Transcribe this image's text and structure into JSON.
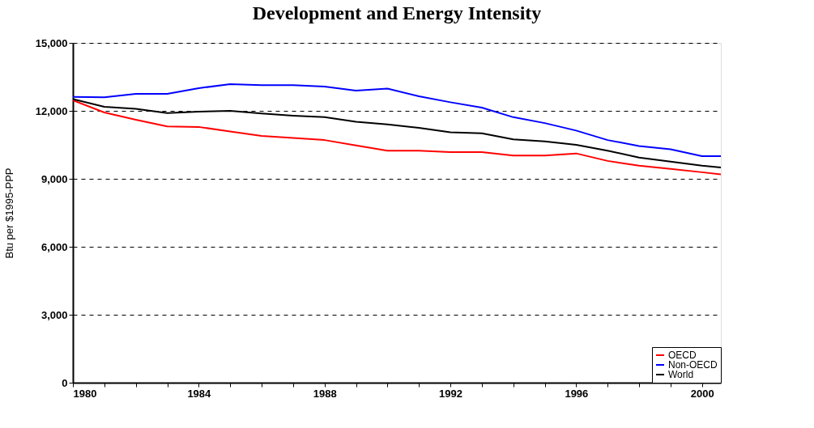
{
  "chart_data": {
    "type": "line",
    "title": "Development and Energy Intensity",
    "ylabel": "Btu per $1995-PPP",
    "x": [
      1980,
      1981,
      1982,
      1983,
      1984,
      1985,
      1986,
      1987,
      1988,
      1989,
      1990,
      1991,
      1992,
      1993,
      1994,
      1995,
      1996,
      1997,
      1998,
      1999,
      2000,
      2000.6
    ],
    "series": [
      {
        "name": "OECD",
        "color": "#ff0000",
        "values": [
          12470,
          11930,
          11610,
          11310,
          11290,
          11090,
          10890,
          10800,
          10710,
          10470,
          10240,
          10240,
          10180,
          10180,
          10030,
          10030,
          10120,
          9790,
          9580,
          9440,
          9290,
          9200
        ]
      },
      {
        "name": "Non-OECD",
        "color": "#0000ff",
        "values": [
          12620,
          12600,
          12750,
          12750,
          13000,
          13180,
          13130,
          13130,
          13070,
          12890,
          12980,
          12640,
          12380,
          12140,
          11720,
          11460,
          11130,
          10710,
          10450,
          10300,
          10000,
          10000
        ]
      },
      {
        "name": "World",
        "color": "#000000",
        "values": [
          12520,
          12180,
          12090,
          11900,
          11960,
          12000,
          11880,
          11790,
          11720,
          11520,
          11400,
          11250,
          11050,
          11010,
          10740,
          10650,
          10500,
          10240,
          9940,
          9760,
          9580,
          9500
        ]
      }
    ],
    "xlim": [
      1980,
      2000.6
    ],
    "xticks": [
      1980,
      {
        "value": 1981,
        "label": null
      },
      {
        "value": 1982,
        "label": null
      },
      {
        "value": 1983,
        "label": null
      },
      1984,
      {
        "value": 1985,
        "label": null
      },
      {
        "value": 1986,
        "label": null
      },
      {
        "value": 1987,
        "label": null
      },
      1988,
      {
        "value": 1989,
        "label": null
      },
      {
        "value": 1990,
        "label": null
      },
      {
        "value": 1991,
        "label": null
      },
      1992,
      {
        "value": 1993,
        "label": null
      },
      {
        "value": 1994,
        "label": null
      },
      {
        "value": 1995,
        "label": null
      },
      1996,
      {
        "value": 1997,
        "label": null
      },
      {
        "value": 1998,
        "label": null
      },
      {
        "value": 1999,
        "label": null
      },
      2000
    ],
    "ylim": [
      0,
      15000
    ],
    "yticks": [
      {
        "value": 0,
        "label": "0"
      },
      {
        "value": 3000,
        "label": "3,000"
      },
      {
        "value": 6000,
        "label": "6,000"
      },
      {
        "value": 9000,
        "label": "9,000"
      },
      {
        "value": 12000,
        "label": "12,000"
      },
      {
        "value": 15000,
        "label": "15,000"
      }
    ],
    "grid": "y",
    "legend": "bottom right",
    "marker": "none",
    "line_style": "solid"
  }
}
